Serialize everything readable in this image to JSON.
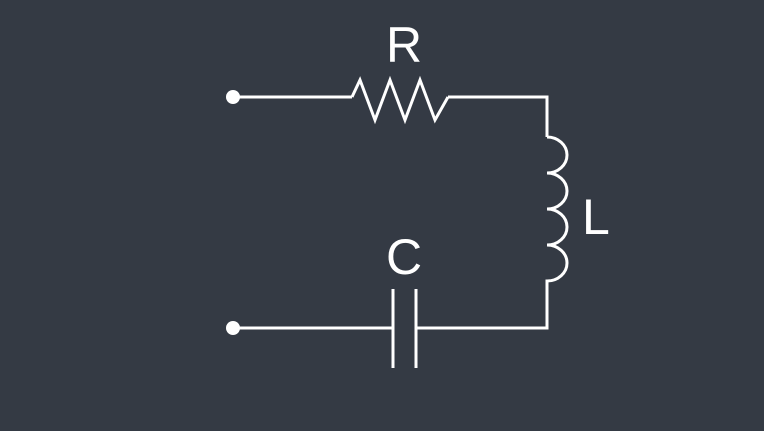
{
  "diagram": {
    "components": [
      {
        "id": "resistor",
        "label": "R"
      },
      {
        "id": "inductor",
        "label": "L"
      },
      {
        "id": "capacitor",
        "label": "C"
      }
    ]
  }
}
